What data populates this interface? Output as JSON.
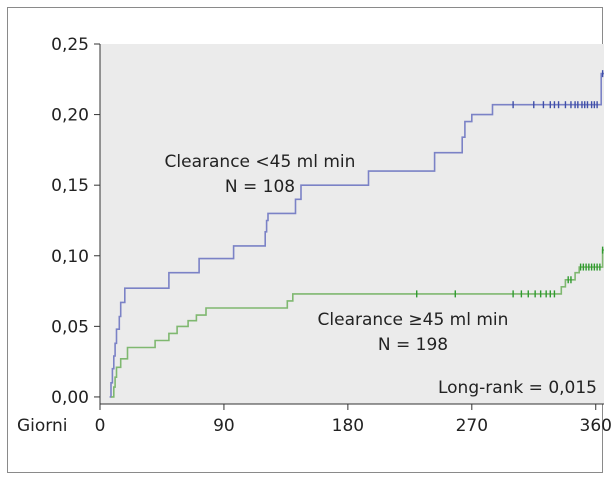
{
  "chart_data": {
    "type": "line",
    "step": true,
    "title": "",
    "xlabel": "Giorni",
    "ylabel": "",
    "xlim": [
      0,
      366
    ],
    "ylim": [
      -0.005,
      0.25
    ],
    "x_ticks": [
      0,
      90,
      180,
      270,
      360
    ],
    "x_tick_labels": [
      "0",
      "90",
      "180",
      "270",
      "360"
    ],
    "y_ticks": [
      0,
      0.05,
      0.1,
      0.15,
      0.2,
      0.25
    ],
    "y_tick_labels": [
      "0,00",
      "0,05",
      "0,10",
      "0,15",
      "0,20",
      "0,25"
    ],
    "grid": false,
    "plot_background": "#ebebeb",
    "series": [
      {
        "name": "Clearance <45 ml min",
        "n_label": "N = 108",
        "color": "#7b82c6",
        "marker_color": "#3f4fa8",
        "points": [
          [
            7,
            0
          ],
          [
            8,
            0.01
          ],
          [
            9,
            0.02
          ],
          [
            10,
            0.029
          ],
          [
            11,
            0.038
          ],
          [
            12,
            0.048
          ],
          [
            14,
            0.057
          ],
          [
            15,
            0.067
          ],
          [
            18,
            0.077
          ],
          [
            50,
            0.088
          ],
          [
            72,
            0.098
          ],
          [
            97,
            0.107
          ],
          [
            120,
            0.117
          ],
          [
            121,
            0.125
          ],
          [
            122,
            0.13
          ],
          [
            142,
            0.14
          ],
          [
            146,
            0.15
          ],
          [
            195,
            0.16
          ],
          [
            243,
            0.173
          ],
          [
            263,
            0.184
          ],
          [
            265,
            0.195
          ],
          [
            270,
            0.2
          ],
          [
            285,
            0.207
          ],
          [
            362,
            0.207
          ],
          [
            364,
            0.229
          ],
          [
            366,
            0.229
          ]
        ],
        "censor_x": [
          300,
          315,
          322,
          327,
          330,
          333,
          338,
          342,
          345,
          347,
          350,
          352,
          354,
          357,
          359,
          361,
          365
        ]
      },
      {
        "name": "Clearance ≥45 ml min",
        "n_label": "N = 198",
        "color": "#7fb870",
        "marker_color": "#2f9a2f",
        "points": [
          [
            8,
            0
          ],
          [
            10,
            0.007
          ],
          [
            11,
            0.014
          ],
          [
            12,
            0.021
          ],
          [
            15,
            0.027
          ],
          [
            20,
            0.035
          ],
          [
            40,
            0.04
          ],
          [
            50,
            0.045
          ],
          [
            56,
            0.05
          ],
          [
            64,
            0.054
          ],
          [
            70,
            0.058
          ],
          [
            77,
            0.063
          ],
          [
            136,
            0.068
          ],
          [
            140,
            0.073
          ],
          [
            322,
            0.073
          ],
          [
            335,
            0.078
          ],
          [
            338,
            0.083
          ],
          [
            345,
            0.088
          ],
          [
            348,
            0.092
          ],
          [
            362,
            0.092
          ],
          [
            365,
            0.104
          ],
          [
            366,
            0.104
          ]
        ],
        "censor_x": [
          230,
          258,
          300,
          306,
          311,
          316,
          320,
          324,
          327,
          330,
          340,
          342,
          349,
          351,
          353,
          355,
          357,
          359,
          361,
          363,
          365
        ]
      }
    ],
    "annotations": [
      {
        "text": "Long-rank = 0,015",
        "position": "bottom-right"
      }
    ]
  }
}
